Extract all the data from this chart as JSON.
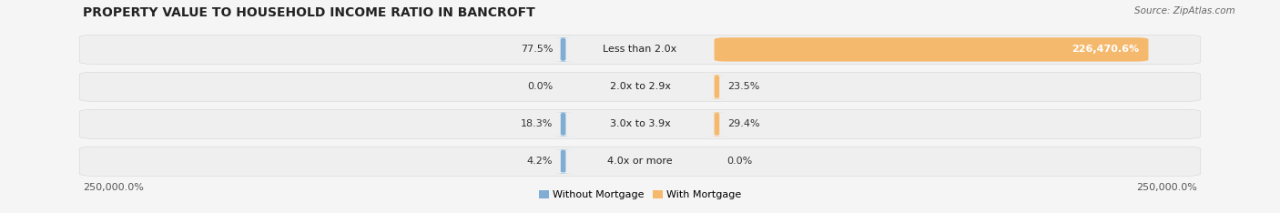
{
  "title": "PROPERTY VALUE TO HOUSEHOLD INCOME RATIO IN BANCROFT",
  "source": "Source: ZipAtlas.com",
  "categories": [
    "Less than 2.0x",
    "2.0x to 2.9x",
    "3.0x to 3.9x",
    "4.0x or more"
  ],
  "without_mortgage": [
    77.5,
    0.0,
    18.3,
    4.2
  ],
  "with_mortgage": [
    226470.6,
    23.5,
    29.4,
    0.0
  ],
  "without_mortgage_labels": [
    "77.5%",
    "0.0%",
    "18.3%",
    "4.2%"
  ],
  "with_mortgage_labels": [
    "226,470.6%",
    "23.5%",
    "29.4%",
    "0.0%"
  ],
  "color_without": "#7fadd4",
  "color_with": "#f5b96e",
  "bg_row": "#e8e8e8",
  "bg_figure": "#f5f5f5",
  "axis_label_left": "250,000.0%",
  "axis_label_right": "250,000.0%",
  "title_fontsize": 10,
  "source_fontsize": 7.5,
  "label_fontsize": 8,
  "cat_fontsize": 8,
  "legend_fontsize": 8,
  "max_without": 250000.0,
  "max_with": 250000.0,
  "figsize": [
    14.06,
    2.34
  ],
  "dpi": 100
}
